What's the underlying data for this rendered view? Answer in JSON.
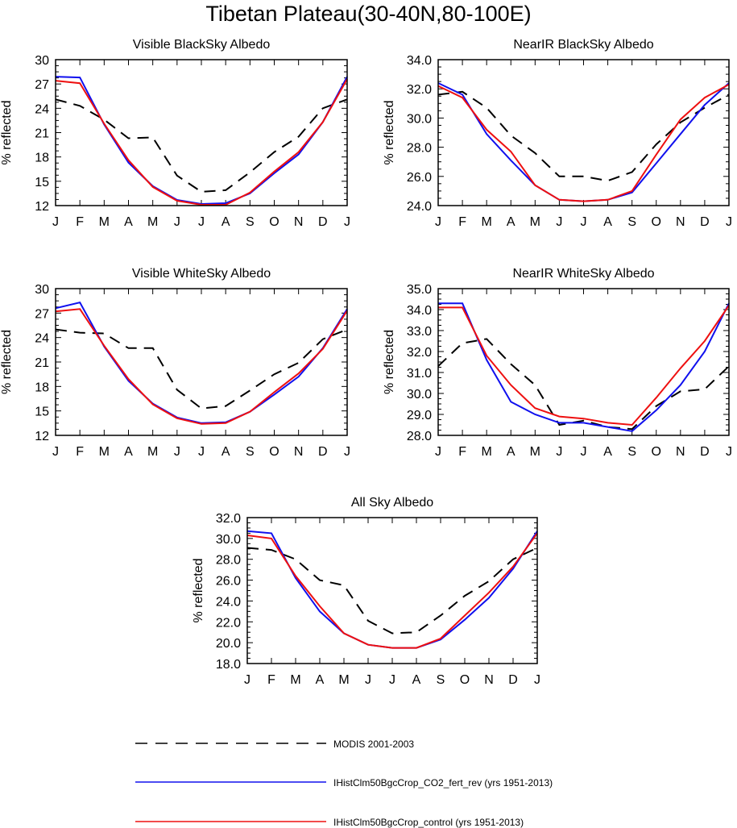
{
  "title": "Tibetan Plateau(30-40N,80-100E)",
  "colors": {
    "modis": "#000000",
    "co2_fert_rev": "#1010ee",
    "control": "#ee1010"
  },
  "legend": [
    {
      "key": "modis",
      "label": "MODIS 2001-2003",
      "style": "dashed"
    },
    {
      "key": "co2_fert_rev",
      "label": "IHistClm50BgcCrop_CO2_fert_rev (yrs 1951-2013)",
      "style": "solid"
    },
    {
      "key": "control",
      "label": "IHistClm50BgcCrop_control (yrs 1951-2013)",
      "style": "solid"
    }
  ],
  "chart_data": [
    {
      "type": "line",
      "title": "Visible BlackSky Albedo",
      "ylabel": "% reflected",
      "categories": [
        "J",
        "F",
        "M",
        "A",
        "M",
        "J",
        "J",
        "A",
        "S",
        "O",
        "N",
        "D",
        "J"
      ],
      "ylim": [
        12,
        30
      ],
      "yticks": [
        "12",
        "15",
        "18",
        "21",
        "24",
        "27",
        "30"
      ],
      "series": [
        {
          "name": "MODIS 2001-2003",
          "key": "modis",
          "values": [
            25.1,
            24.3,
            22.6,
            20.3,
            20.4,
            15.7,
            13.7,
            13.9,
            16.1,
            18.6,
            20.5,
            24.0,
            25.1
          ]
        },
        {
          "name": "IHistClm50BgcCrop_CO2_fert_rev (yrs 1951-2013)",
          "key": "co2_fert_rev",
          "values": [
            27.9,
            27.8,
            22.0,
            17.3,
            14.4,
            12.7,
            12.2,
            12.3,
            13.5,
            16.0,
            18.3,
            22.3,
            27.9
          ]
        },
        {
          "name": "IHistClm50BgcCrop_control (yrs 1951-2013)",
          "key": "control",
          "values": [
            27.4,
            27.1,
            22.1,
            17.6,
            14.3,
            12.6,
            12.1,
            12.1,
            13.6,
            16.2,
            18.6,
            22.3,
            27.6
          ]
        }
      ]
    },
    {
      "type": "line",
      "title": "NearIR BlackSky Albedo",
      "ylabel": "% reflected",
      "categories": [
        "J",
        "F",
        "M",
        "A",
        "M",
        "J",
        "J",
        "A",
        "S",
        "O",
        "N",
        "D",
        "J"
      ],
      "ylim": [
        24,
        34
      ],
      "yticks": [
        "24.0",
        "26.0",
        "28.0",
        "30.0",
        "32.0",
        "34.0"
      ],
      "series": [
        {
          "name": "MODIS 2001-2003",
          "key": "modis",
          "values": [
            31.6,
            31.8,
            30.7,
            28.8,
            27.6,
            26.0,
            26.0,
            25.7,
            26.3,
            28.2,
            29.7,
            30.7,
            31.6
          ]
        },
        {
          "name": "IHistClm50BgcCrop_CO2_fert_rev (yrs 1951-2013)",
          "key": "co2_fert_rev",
          "values": [
            32.4,
            31.6,
            28.9,
            27.1,
            25.4,
            24.4,
            24.3,
            24.4,
            24.9,
            26.9,
            28.9,
            30.9,
            32.4
          ]
        },
        {
          "name": "IHistClm50BgcCrop_control (yrs 1951-2013)",
          "key": "control",
          "values": [
            32.2,
            31.4,
            29.2,
            27.7,
            25.4,
            24.4,
            24.3,
            24.4,
            25.0,
            27.5,
            29.9,
            31.4,
            32.3
          ]
        }
      ]
    },
    {
      "type": "line",
      "title": "Visible WhiteSky Albedo",
      "ylabel": "% reflected",
      "categories": [
        "J",
        "F",
        "M",
        "A",
        "M",
        "J",
        "J",
        "A",
        "S",
        "O",
        "N",
        "D",
        "J"
      ],
      "ylim": [
        12,
        30
      ],
      "yticks": [
        "12",
        "15",
        "18",
        "21",
        "24",
        "27",
        "30"
      ],
      "series": [
        {
          "name": "MODIS 2001-2003",
          "key": "modis",
          "values": [
            25.0,
            24.6,
            24.5,
            22.7,
            22.7,
            17.6,
            15.3,
            15.6,
            17.5,
            19.5,
            20.9,
            23.8,
            25.0
          ]
        },
        {
          "name": "IHistClm50BgcCrop_CO2_fert_rev (yrs 1951-2013)",
          "key": "co2_fert_rev",
          "values": [
            27.6,
            28.3,
            22.9,
            18.7,
            15.9,
            14.2,
            13.5,
            13.6,
            14.9,
            17.0,
            19.2,
            22.7,
            27.5
          ]
        },
        {
          "name": "IHistClm50BgcCrop_control (yrs 1951-2013)",
          "key": "control",
          "values": [
            27.2,
            27.5,
            23.0,
            18.9,
            15.8,
            14.1,
            13.4,
            13.5,
            14.9,
            17.3,
            19.6,
            22.6,
            27.3
          ]
        }
      ]
    },
    {
      "type": "line",
      "title": "NearIR WhiteSky Albedo",
      "ylabel": "% reflected",
      "categories": [
        "J",
        "F",
        "M",
        "A",
        "M",
        "J",
        "J",
        "A",
        "S",
        "O",
        "N",
        "D",
        "J"
      ],
      "ylim": [
        28,
        35
      ],
      "yticks": [
        "28.0",
        "29.0",
        "30.0",
        "31.0",
        "32.0",
        "33.0",
        "34.0",
        "35.0"
      ],
      "series": [
        {
          "name": "MODIS 2001-2003",
          "key": "modis",
          "values": [
            31.3,
            32.4,
            32.6,
            31.4,
            30.4,
            28.5,
            28.7,
            28.4,
            28.3,
            29.4,
            30.1,
            30.2,
            31.3
          ]
        },
        {
          "name": "IHistClm50BgcCrop_CO2_fert_rev (yrs 1951-2013)",
          "key": "co2_fert_rev",
          "values": [
            34.3,
            34.3,
            31.6,
            29.6,
            29.0,
            28.6,
            28.6,
            28.4,
            28.2,
            29.2,
            30.4,
            32.0,
            34.3
          ]
        },
        {
          "name": "IHistClm50BgcCrop_control (yrs 1951-2013)",
          "key": "control",
          "values": [
            34.1,
            34.1,
            31.8,
            30.4,
            29.3,
            28.9,
            28.8,
            28.6,
            28.5,
            29.8,
            31.2,
            32.5,
            34.2
          ]
        }
      ]
    },
    {
      "type": "line",
      "title": "All Sky Albedo",
      "ylabel": "% reflected",
      "categories": [
        "J",
        "F",
        "M",
        "A",
        "M",
        "J",
        "J",
        "A",
        "S",
        "O",
        "N",
        "D",
        "J"
      ],
      "ylim": [
        18,
        32
      ],
      "yticks": [
        "18.0",
        "20.0",
        "22.0",
        "24.0",
        "26.0",
        "28.0",
        "30.0",
        "32.0"
      ],
      "series": [
        {
          "name": "MODIS 2001-2003",
          "key": "modis",
          "values": [
            29.1,
            28.9,
            28.0,
            26.0,
            25.5,
            22.1,
            20.9,
            21.0,
            22.6,
            24.5,
            25.9,
            28.0,
            29.1
          ]
        },
        {
          "name": "IHistClm50BgcCrop_CO2_fert_rev (yrs 1951-2013)",
          "key": "co2_fert_rev",
          "values": [
            30.7,
            30.5,
            26.2,
            23.0,
            20.9,
            19.8,
            19.5,
            19.5,
            20.3,
            22.2,
            24.3,
            27.1,
            30.7
          ]
        },
        {
          "name": "IHistClm50BgcCrop_control (yrs 1951-2013)",
          "key": "control",
          "values": [
            30.3,
            30.0,
            26.4,
            23.5,
            20.9,
            19.8,
            19.5,
            19.5,
            20.4,
            22.6,
            24.8,
            27.3,
            30.5
          ]
        }
      ]
    }
  ]
}
